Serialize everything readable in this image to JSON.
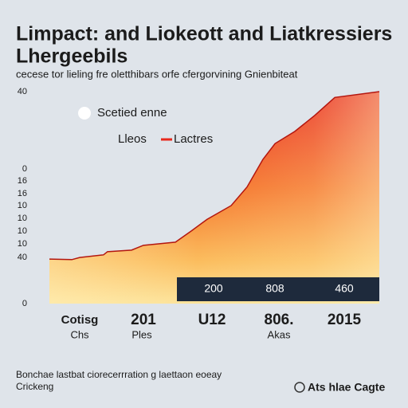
{
  "chart_data": {
    "type": "area",
    "title": "Limpact: and Liokeott and Liatkressiers",
    "title_line2": "Lhergeebils",
    "subtitle": "cecese tor lieling fre oletthibars orfe cfergorvining Gnienbiteat",
    "y_axis_labels": [
      "40",
      "0",
      "16",
      "16",
      "10",
      "10",
      "10",
      "10",
      "40",
      "0"
    ],
    "legend": [
      "Scetied enne",
      "Lleos",
      "Lactres"
    ],
    "x_labels": [
      "Cotisg",
      "201",
      "U12",
      "806.",
      "2015"
    ],
    "x_sublabels": [
      "Chs",
      "Ples",
      "Akas"
    ],
    "band_labels": [
      "200",
      "808",
      "460"
    ],
    "footer": "Bonchae lastbat ciorecerrration g laettaon eoeay",
    "footer_line2": "Crickeng",
    "source": "Ats hlae Cagte",
    "xlim": [
      0,
      100
    ],
    "ylim": [
      0,
      40
    ],
    "x": [
      0,
      6.8,
      9.2,
      16.4,
      17.6,
      24.9,
      28.5,
      38.2,
      43.0,
      47.8,
      55.1,
      59.9,
      64.7,
      68.4,
      74.4,
      80.4,
      86.5,
      100
    ],
    "values": [
      8.4,
      8.3,
      8.7,
      9.2,
      9.8,
      10.1,
      11.0,
      11.6,
      13.7,
      15.9,
      18.5,
      22.0,
      27.2,
      30.2,
      32.5,
      35.5,
      38.9,
      40
    ],
    "color": "#e8281c"
  }
}
